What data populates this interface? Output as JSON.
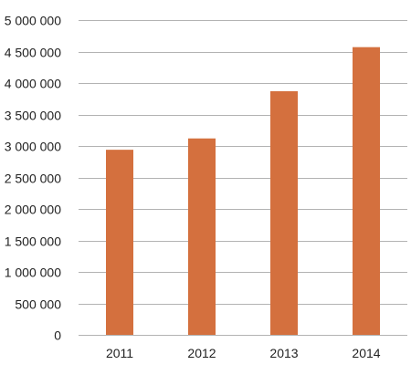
{
  "chart_data": {
    "type": "bar",
    "categories": [
      "2011",
      "2012",
      "2013",
      "2014"
    ],
    "values": [
      2940000,
      3120000,
      3870000,
      4570000
    ],
    "ylim": [
      0,
      5000000
    ],
    "yticks": [
      0,
      500000,
      1000000,
      1500000,
      2000000,
      2500000,
      3000000,
      3500000,
      4000000,
      4500000,
      5000000
    ],
    "ytick_labels": [
      "0",
      "500 000",
      "1 000 000",
      "1 500 000",
      "2 000 000",
      "2 500 000",
      "3 000 000",
      "3 500 000",
      "4 000 000",
      "4 500 000",
      "5 000 000"
    ],
    "grid": true,
    "legend": "none",
    "bar_color": "#d4703e"
  }
}
